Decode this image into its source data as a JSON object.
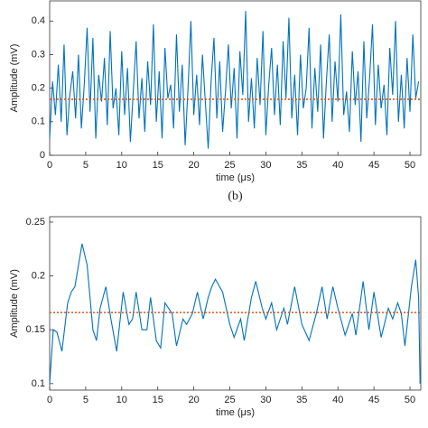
{
  "chart_data": [
    {
      "type": "line",
      "ylabel": "Amplitude (mV)",
      "xlabel": "time (μs)",
      "caption": "(b)",
      "xlim": [
        0,
        51.5
      ],
      "ylim": [
        0,
        0.46
      ],
      "xticks": [
        0,
        5,
        10,
        15,
        20,
        25,
        30,
        35,
        40,
        45,
        50
      ],
      "yticks": [
        0,
        0.1,
        0.2,
        0.3,
        0.4
      ],
      "mean_line": {
        "value": 0.167,
        "color": "#d95319"
      },
      "series": [
        {
          "color": "#0072bd",
          "x": [
            0,
            0.4,
            0.8,
            1.2,
            1.6,
            2,
            2.4,
            2.8,
            3.2,
            3.6,
            4,
            4.4,
            4.8,
            5.2,
            5.6,
            6,
            6.4,
            6.8,
            7.2,
            7.6,
            8,
            8.4,
            8.8,
            9.2,
            9.6,
            10,
            10.4,
            10.8,
            11.2,
            11.6,
            12,
            12.4,
            12.8,
            13.2,
            13.6,
            14,
            14.4,
            14.8,
            15.2,
            15.6,
            16,
            16.4,
            16.8,
            17.2,
            17.6,
            18,
            18.4,
            18.8,
            19.2,
            19.6,
            20,
            20.4,
            20.8,
            21.2,
            21.6,
            22,
            22.4,
            22.8,
            23.2,
            23.6,
            24,
            24.4,
            24.8,
            25.2,
            25.6,
            26,
            26.4,
            26.8,
            27.2,
            27.6,
            28,
            28.4,
            28.8,
            29.2,
            29.6,
            30,
            30.4,
            30.8,
            31.2,
            31.6,
            32,
            32.4,
            32.8,
            33.2,
            33.6,
            34,
            34.4,
            34.8,
            35.2,
            35.6,
            36,
            36.4,
            36.8,
            37.2,
            37.6,
            38,
            38.4,
            38.8,
            39.2,
            39.6,
            40,
            40.4,
            40.8,
            41.2,
            41.6,
            42,
            42.4,
            42.8,
            43.2,
            43.6,
            44,
            44.4,
            44.8,
            45.2,
            45.6,
            46,
            46.4,
            46.8,
            47.2,
            47.6,
            48,
            48.4,
            48.8,
            49.2,
            49.6,
            50,
            50.4,
            50.8,
            51.2
          ],
          "values": [
            0.05,
            0.22,
            0.12,
            0.27,
            0.1,
            0.33,
            0.06,
            0.18,
            0.25,
            0.11,
            0.3,
            0.08,
            0.21,
            0.38,
            0.13,
            0.35,
            0.05,
            0.24,
            0.16,
            0.29,
            0.09,
            0.37,
            0.14,
            0.2,
            0.06,
            0.31,
            0.12,
            0.26,
            0.04,
            0.19,
            0.34,
            0.11,
            0.23,
            0.07,
            0.28,
            0.15,
            0.39,
            0.1,
            0.25,
            0.05,
            0.32,
            0.17,
            0.21,
            0.08,
            0.36,
            0.13,
            0.27,
            0.03,
            0.2,
            0.4,
            0.12,
            0.24,
            0.09,
            0.3,
            0.16,
            0.02,
            0.22,
            0.35,
            0.11,
            0.28,
            0.07,
            0.19,
            0.33,
            0.14,
            0.26,
            0.05,
            0.31,
            0.18,
            0.43,
            0.1,
            0.23,
            0.08,
            0.29,
            0.15,
            0.37,
            0.06,
            0.21,
            0.32,
            0.12,
            0.27,
            0.09,
            0.34,
            0.17,
            0.41,
            0.11,
            0.24,
            0.06,
            0.3,
            0.14,
            0.2,
            0.38,
            0.08,
            0.26,
            0.13,
            0.33,
            0.05,
            0.22,
            0.36,
            0.1,
            0.28,
            0.16,
            0.42,
            0.12,
            0.19,
            0.07,
            0.31,
            0.15,
            0.25,
            0.04,
            0.34,
            0.11,
            0.23,
            0.39,
            0.09,
            0.27,
            0.14,
            0.21,
            0.06,
            0.32,
            0.18,
            0.4,
            0.1,
            0.24,
            0.08,
            0.29,
            0.13,
            0.36,
            0.17,
            0.22
          ]
        }
      ]
    },
    {
      "type": "line",
      "ylabel": "Amplitude (mV)",
      "xlabel": "time (μs)",
      "xlim": [
        0,
        51.5
      ],
      "ylim": [
        0.094,
        0.255
      ],
      "xticks": [
        0,
        5,
        10,
        15,
        20,
        25,
        30,
        35,
        40,
        45,
        50
      ],
      "yticks": [
        0.1,
        0.15,
        0.2,
        0.25
      ],
      "mean_line": {
        "value": 0.166,
        "color": "#d95319"
      },
      "series": [
        {
          "color": "#0072bd",
          "x": [
            0,
            0.5,
            1,
            1.7,
            2.5,
            3,
            3.5,
            4.5,
            5.2,
            6,
            6.5,
            7,
            7.8,
            8.5,
            9.3,
            10.2,
            11,
            11.5,
            12,
            12.8,
            13.5,
            14,
            14.8,
            15.4,
            16,
            17,
            17.6,
            18.5,
            19,
            19.8,
            20.5,
            21.3,
            22,
            22.5,
            23,
            24,
            25,
            25.6,
            26.5,
            27,
            28,
            28.6,
            29.5,
            30,
            30.8,
            31.5,
            32.5,
            33,
            34,
            35,
            36,
            37,
            37.8,
            38.5,
            39.3,
            40,
            41,
            42,
            42.5,
            43.5,
            44.3,
            45,
            46,
            47,
            47.6,
            48.3,
            48.8,
            49.3,
            50.2,
            50.8,
            51.2,
            51.4
          ],
          "values": [
            0.1,
            0.15,
            0.148,
            0.13,
            0.175,
            0.185,
            0.19,
            0.23,
            0.21,
            0.15,
            0.14,
            0.17,
            0.19,
            0.16,
            0.13,
            0.185,
            0.155,
            0.16,
            0.185,
            0.15,
            0.15,
            0.18,
            0.14,
            0.133,
            0.175,
            0.165,
            0.135,
            0.16,
            0.155,
            0.165,
            0.185,
            0.16,
            0.18,
            0.19,
            0.197,
            0.185,
            0.155,
            0.143,
            0.16,
            0.14,
            0.18,
            0.195,
            0.17,
            0.16,
            0.175,
            0.15,
            0.17,
            0.155,
            0.19,
            0.155,
            0.14,
            0.165,
            0.19,
            0.16,
            0.19,
            0.17,
            0.145,
            0.165,
            0.145,
            0.195,
            0.15,
            0.185,
            0.143,
            0.17,
            0.16,
            0.175,
            0.165,
            0.135,
            0.19,
            0.215,
            0.18,
            0.1
          ]
        }
      ]
    }
  ]
}
